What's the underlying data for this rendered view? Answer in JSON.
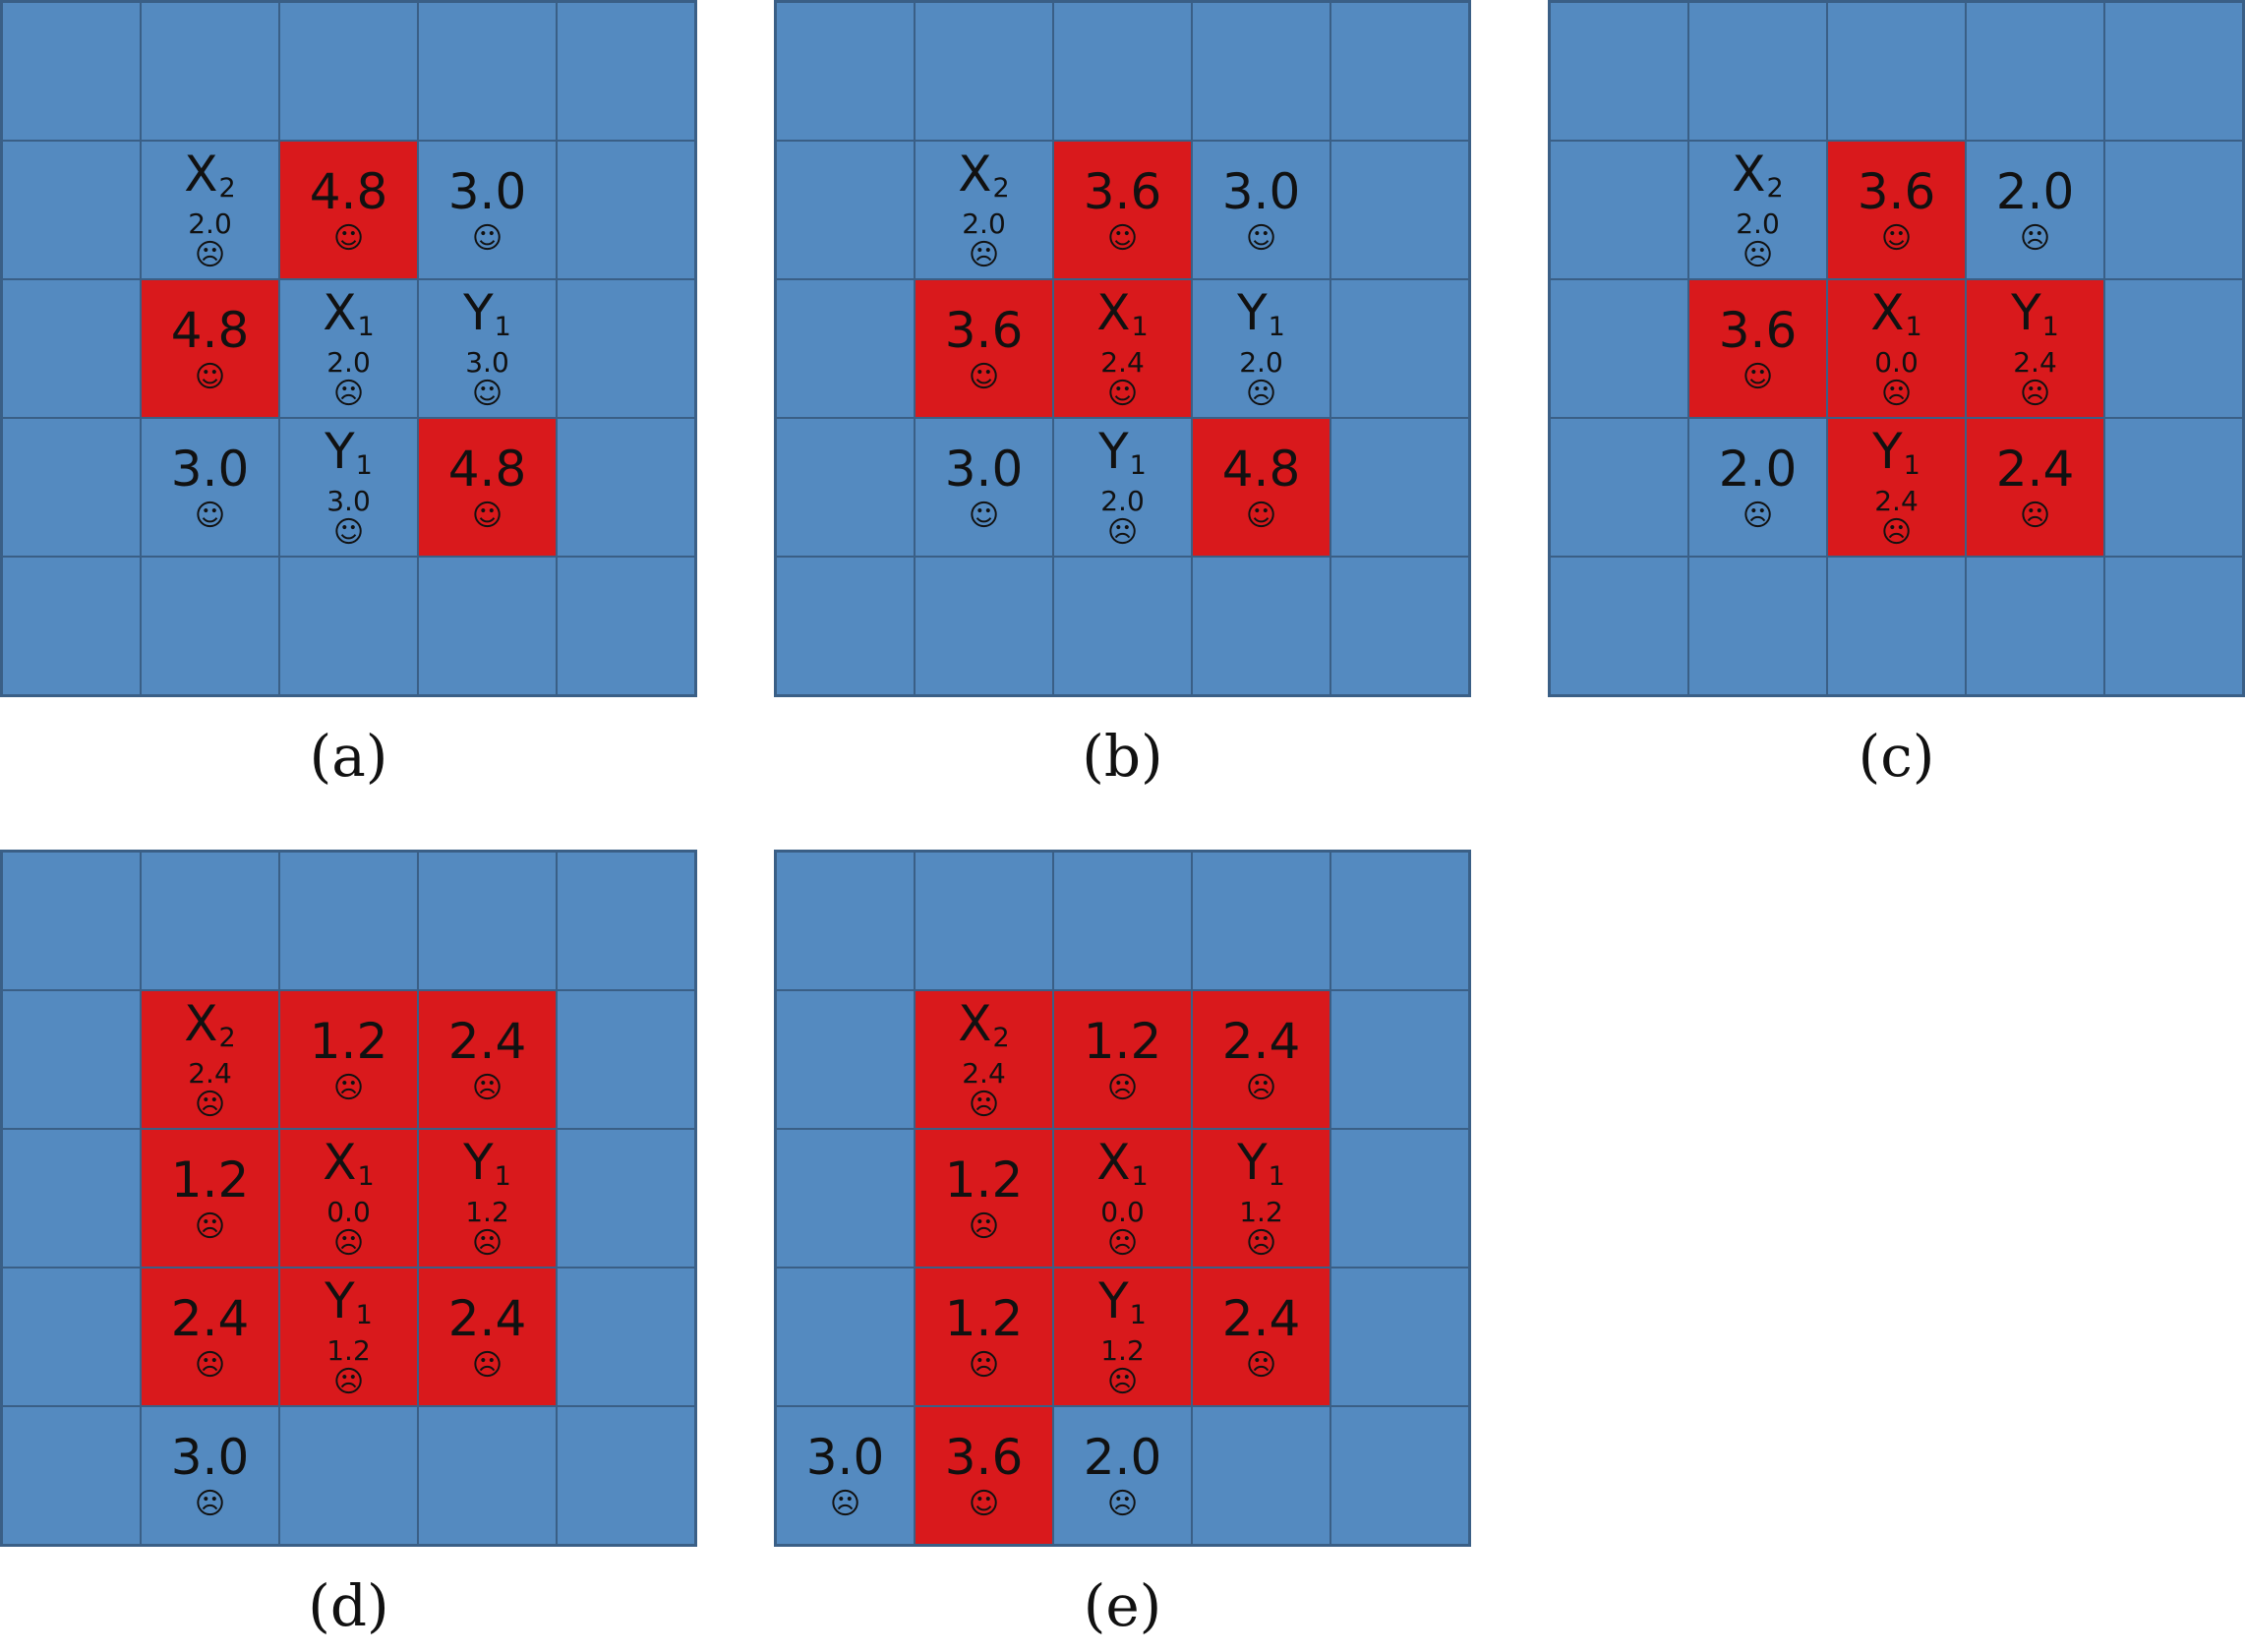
{
  "colors": {
    "blue": "#548ac0",
    "red": "#d9191c",
    "border": "#3a5f86"
  },
  "icons": {
    "happy": "☺",
    "sad": "☹"
  },
  "panels": [
    {
      "caption": "(a)",
      "cells": [
        [
          {
            "c": "blue"
          },
          {
            "c": "blue"
          },
          {
            "c": "blue"
          },
          {
            "c": "blue"
          },
          {
            "c": "blue"
          }
        ],
        [
          {
            "c": "blue"
          },
          {
            "c": "blue",
            "name": "X",
            "sub": "2",
            "val": "2.0",
            "m": "sad"
          },
          {
            "c": "red",
            "big": "4.8",
            "m": "happy"
          },
          {
            "c": "blue",
            "big": "3.0",
            "m": "happy"
          },
          {
            "c": "blue"
          }
        ],
        [
          {
            "c": "blue"
          },
          {
            "c": "red",
            "big": "4.8",
            "m": "happy"
          },
          {
            "c": "blue",
            "name": "X",
            "sub": "1",
            "val": "2.0",
            "m": "sad"
          },
          {
            "c": "blue",
            "name": "Y",
            "sub": "1",
            "val": "3.0",
            "m": "happy"
          },
          {
            "c": "blue"
          }
        ],
        [
          {
            "c": "blue"
          },
          {
            "c": "blue",
            "big": "3.0",
            "m": "happy"
          },
          {
            "c": "blue",
            "name": "Y",
            "sub": "1",
            "val": "3.0",
            "m": "happy"
          },
          {
            "c": "red",
            "big": "4.8",
            "m": "happy"
          },
          {
            "c": "blue"
          }
        ],
        [
          {
            "c": "blue"
          },
          {
            "c": "blue"
          },
          {
            "c": "blue"
          },
          {
            "c": "blue"
          },
          {
            "c": "blue"
          }
        ]
      ]
    },
    {
      "caption": "(b)",
      "cells": [
        [
          {
            "c": "blue"
          },
          {
            "c": "blue"
          },
          {
            "c": "blue"
          },
          {
            "c": "blue"
          },
          {
            "c": "blue"
          }
        ],
        [
          {
            "c": "blue"
          },
          {
            "c": "blue",
            "name": "X",
            "sub": "2",
            "val": "2.0",
            "m": "sad"
          },
          {
            "c": "red",
            "big": "3.6",
            "m": "happy"
          },
          {
            "c": "blue",
            "big": "3.0",
            "m": "happy"
          },
          {
            "c": "blue"
          }
        ],
        [
          {
            "c": "blue"
          },
          {
            "c": "red",
            "big": "3.6",
            "m": "happy"
          },
          {
            "c": "red",
            "name": "X",
            "sub": "1",
            "val": "2.4",
            "m": "happy"
          },
          {
            "c": "blue",
            "name": "Y",
            "sub": "1",
            "val": "2.0",
            "m": "sad"
          },
          {
            "c": "blue"
          }
        ],
        [
          {
            "c": "blue"
          },
          {
            "c": "blue",
            "big": "3.0",
            "m": "happy"
          },
          {
            "c": "blue",
            "name": "Y",
            "sub": "1",
            "val": "2.0",
            "m": "sad"
          },
          {
            "c": "red",
            "big": "4.8",
            "m": "happy"
          },
          {
            "c": "blue"
          }
        ],
        [
          {
            "c": "blue"
          },
          {
            "c": "blue"
          },
          {
            "c": "blue"
          },
          {
            "c": "blue"
          },
          {
            "c": "blue"
          }
        ]
      ]
    },
    {
      "caption": "(c)",
      "cells": [
        [
          {
            "c": "blue"
          },
          {
            "c": "blue"
          },
          {
            "c": "blue"
          },
          {
            "c": "blue"
          },
          {
            "c": "blue"
          }
        ],
        [
          {
            "c": "blue"
          },
          {
            "c": "blue",
            "name": "X",
            "sub": "2",
            "val": "2.0",
            "m": "sad"
          },
          {
            "c": "red",
            "big": "3.6",
            "m": "happy"
          },
          {
            "c": "blue",
            "big": "2.0",
            "m": "sad"
          },
          {
            "c": "blue"
          }
        ],
        [
          {
            "c": "blue"
          },
          {
            "c": "red",
            "big": "3.6",
            "m": "happy"
          },
          {
            "c": "red",
            "name": "X",
            "sub": "1",
            "val": "0.0",
            "m": "sad"
          },
          {
            "c": "red",
            "name": "Y",
            "sub": "1",
            "val": "2.4",
            "m": "sad"
          },
          {
            "c": "blue"
          }
        ],
        [
          {
            "c": "blue"
          },
          {
            "c": "blue",
            "big": "2.0",
            "m": "sad"
          },
          {
            "c": "red",
            "name": "Y",
            "sub": "1",
            "val": "2.4",
            "m": "sad"
          },
          {
            "c": "red",
            "big": "2.4",
            "m": "sad"
          },
          {
            "c": "blue"
          }
        ],
        [
          {
            "c": "blue"
          },
          {
            "c": "blue"
          },
          {
            "c": "blue"
          },
          {
            "c": "blue"
          },
          {
            "c": "blue"
          }
        ]
      ]
    },
    {
      "caption": "(d)",
      "cells": [
        [
          {
            "c": "blue"
          },
          {
            "c": "blue"
          },
          {
            "c": "blue"
          },
          {
            "c": "blue"
          },
          {
            "c": "blue"
          }
        ],
        [
          {
            "c": "blue"
          },
          {
            "c": "red",
            "name": "X",
            "sub": "2",
            "val": "2.4",
            "m": "sad"
          },
          {
            "c": "red",
            "big": "1.2",
            "m": "sad"
          },
          {
            "c": "red",
            "big": "2.4",
            "m": "sad"
          },
          {
            "c": "blue"
          }
        ],
        [
          {
            "c": "blue"
          },
          {
            "c": "red",
            "big": "1.2",
            "m": "sad"
          },
          {
            "c": "red",
            "name": "X",
            "sub": "1",
            "val": "0.0",
            "m": "sad"
          },
          {
            "c": "red",
            "name": "Y",
            "sub": "1",
            "val": "1.2",
            "m": "sad"
          },
          {
            "c": "blue"
          }
        ],
        [
          {
            "c": "blue"
          },
          {
            "c": "red",
            "big": "2.4",
            "m": "sad"
          },
          {
            "c": "red",
            "name": "Y",
            "sub": "1",
            "val": "1.2",
            "m": "sad"
          },
          {
            "c": "red",
            "big": "2.4",
            "m": "sad"
          },
          {
            "c": "blue"
          }
        ],
        [
          {
            "c": "blue"
          },
          {
            "c": "blue",
            "big": "3.0",
            "m": "sad"
          },
          {
            "c": "blue"
          },
          {
            "c": "blue"
          },
          {
            "c": "blue"
          }
        ]
      ]
    },
    {
      "caption": "(e)",
      "cells": [
        [
          {
            "c": "blue"
          },
          {
            "c": "blue"
          },
          {
            "c": "blue"
          },
          {
            "c": "blue"
          },
          {
            "c": "blue"
          }
        ],
        [
          {
            "c": "blue"
          },
          {
            "c": "red",
            "name": "X",
            "sub": "2",
            "val": "2.4",
            "m": "sad"
          },
          {
            "c": "red",
            "big": "1.2",
            "m": "sad"
          },
          {
            "c": "red",
            "big": "2.4",
            "m": "sad"
          },
          {
            "c": "blue"
          }
        ],
        [
          {
            "c": "blue"
          },
          {
            "c": "red",
            "big": "1.2",
            "m": "sad"
          },
          {
            "c": "red",
            "name": "X",
            "sub": "1",
            "val": "0.0",
            "m": "sad"
          },
          {
            "c": "red",
            "name": "Y",
            "sub": "1",
            "val": "1.2",
            "m": "sad"
          },
          {
            "c": "blue"
          }
        ],
        [
          {
            "c": "blue"
          },
          {
            "c": "red",
            "big": "1.2",
            "m": "sad"
          },
          {
            "c": "red",
            "name": "Y",
            "sub": "1",
            "val": "1.2",
            "m": "sad"
          },
          {
            "c": "red",
            "big": "2.4",
            "m": "sad"
          },
          {
            "c": "blue"
          }
        ],
        [
          {
            "c": "blue",
            "big": "3.0",
            "m": "sad"
          },
          {
            "c": "red",
            "big": "3.6",
            "m": "happy"
          },
          {
            "c": "blue",
            "big": "2.0",
            "m": "sad"
          },
          {
            "c": "blue"
          },
          {
            "c": "blue"
          }
        ]
      ]
    }
  ]
}
